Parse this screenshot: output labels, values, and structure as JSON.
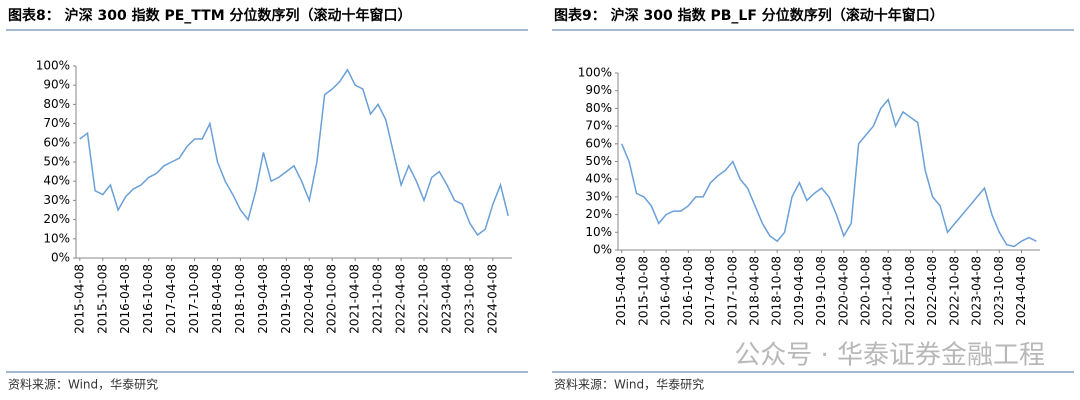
{
  "chart_data": [
    {
      "type": "line",
      "title": "图表8： 沪深 300 指数 PE_TTM 分位数序列（滚动十年窗口）",
      "source": "资料来源：Wind，华泰研究",
      "categories": [
        "2015-04-08",
        null,
        null,
        "2015-10-08",
        null,
        null,
        "2016-04-08",
        null,
        null,
        "2016-10-08",
        null,
        null,
        "2017-04-08",
        null,
        null,
        "2017-10-08",
        null,
        null,
        "2018-04-08",
        null,
        null,
        "2018-10-08",
        null,
        null,
        "2019-04-08",
        null,
        null,
        "2019-10-08",
        null,
        null,
        "2020-04-08",
        null,
        null,
        "2020-10-08",
        null,
        null,
        "2021-04-08",
        null,
        null,
        "2021-10-08",
        null,
        null,
        "2022-04-08",
        null,
        null,
        "2022-10-08",
        null,
        null,
        "2023-04-08",
        null,
        null,
        "2023-10-08",
        null,
        null,
        "2024-04-08",
        null,
        null
      ],
      "values": [
        62,
        65,
        35,
        33,
        38,
        25,
        32,
        36,
        38,
        42,
        44,
        48,
        50,
        52,
        58,
        62,
        62,
        70,
        50,
        40,
        33,
        25,
        20,
        35,
        55,
        40,
        42,
        45,
        48,
        40,
        30,
        50,
        85,
        88,
        92,
        98,
        90,
        88,
        75,
        80,
        72,
        55,
        38,
        48,
        40,
        30,
        42,
        45,
        38,
        30,
        28,
        18,
        12,
        15,
        28,
        38,
        22
      ],
      "color": "#6a9fd8",
      "ylim": [
        0,
        100
      ],
      "yticks": [
        {
          "value": 0,
          "label": "0%"
        },
        {
          "value": 10,
          "label": "10%"
        },
        {
          "value": 20,
          "label": "20%"
        },
        {
          "value": 30,
          "label": "30%"
        },
        {
          "value": 40,
          "label": "40%"
        },
        {
          "value": 50,
          "label": "50%"
        },
        {
          "value": 60,
          "label": "60%"
        },
        {
          "value": 70,
          "label": "70%"
        },
        {
          "value": 80,
          "label": "80%"
        },
        {
          "value": 90,
          "label": "90%"
        },
        {
          "value": 100,
          "label": "100%"
        }
      ],
      "grid": false
    },
    {
      "type": "line",
      "title": "图表9： 沪深 300 指数 PB_LF 分位数序列（滚动十年窗口）",
      "source": "资料来源：Wind，华泰研究",
      "categories": [
        "2015-04-08",
        null,
        null,
        "2015-10-08",
        null,
        null,
        "2016-04-08",
        null,
        null,
        "2016-10-08",
        null,
        null,
        "2017-04-08",
        null,
        null,
        "2017-10-08",
        null,
        null,
        "2018-04-08",
        null,
        null,
        "2018-10-08",
        null,
        null,
        "2019-04-08",
        null,
        null,
        "2019-10-08",
        null,
        null,
        "2020-04-08",
        null,
        null,
        "2020-10-08",
        null,
        null,
        "2021-04-08",
        null,
        null,
        "2021-10-08",
        null,
        null,
        "2022-04-08",
        null,
        null,
        "2022-10-08",
        null,
        null,
        "2023-04-08",
        null,
        null,
        "2023-10-08",
        null,
        null,
        "2024-04-08",
        null,
        null
      ],
      "values": [
        60,
        50,
        32,
        30,
        25,
        15,
        20,
        22,
        22,
        25,
        30,
        30,
        38,
        42,
        45,
        50,
        40,
        35,
        25,
        15,
        8,
        5,
        10,
        30,
        38,
        28,
        32,
        35,
        30,
        20,
        8,
        15,
        60,
        65,
        70,
        80,
        85,
        70,
        78,
        75,
        72,
        45,
        30,
        25,
        10,
        15,
        20,
        25,
        30,
        35,
        20,
        10,
        3,
        2,
        5,
        7,
        5
      ],
      "color": "#6a9fd8",
      "ylim": [
        0,
        100
      ],
      "yticks": [
        {
          "value": 0,
          "label": "0%"
        },
        {
          "value": 10,
          "label": "10%"
        },
        {
          "value": 20,
          "label": "20%"
        },
        {
          "value": 30,
          "label": "30%"
        },
        {
          "value": 40,
          "label": "40%"
        },
        {
          "value": 50,
          "label": "50%"
        },
        {
          "value": 60,
          "label": "60%"
        },
        {
          "value": 70,
          "label": "70%"
        },
        {
          "value": 80,
          "label": "80%"
        },
        {
          "value": 90,
          "label": "90%"
        },
        {
          "value": 100,
          "label": "100%"
        }
      ],
      "grid": false
    }
  ],
  "watermark": "公众号 · 华泰证券金融工程"
}
